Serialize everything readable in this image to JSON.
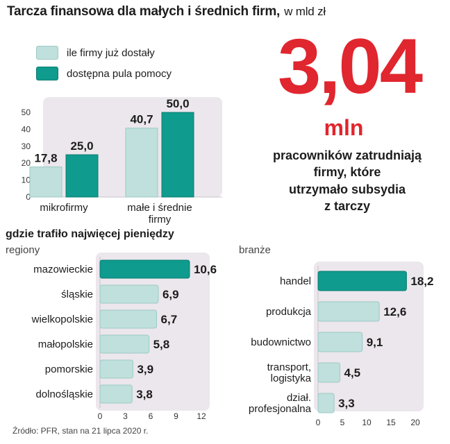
{
  "title": "Tarcza finansowa dla małych i średnich firm,",
  "title_unit": "w mld zł",
  "legend": [
    {
      "label": "ile firmy już dostały",
      "color": "#bfe0dd"
    },
    {
      "label": "dostępna pula pomocy",
      "color": "#0f9b8e"
    }
  ],
  "headline": {
    "number": "3,04",
    "unit": "mln",
    "caption": "pracowników zatrudniają\nfirmy, które\nutrzymało subsydia\nz tarczy"
  },
  "section_title": "gdzie trafiło najwięcej pieniędzy",
  "source": "Źródło: PFR, stan na 21 lipca 2020 r.",
  "colors": {
    "light": "#bfe0dd",
    "dark": "#0f9b8e",
    "accent": "#e0262e",
    "panel": "#ece7ec"
  },
  "chart_data": [
    {
      "type": "bar",
      "categories": [
        "mikrofirmy",
        "małe i średnie firmy"
      ],
      "category_labels": [
        "mikrofirmy",
        "małe i średnie\nfirmy"
      ],
      "series": [
        {
          "name": "ile firmy już dostały",
          "values": [
            17.8,
            40.7
          ],
          "labels": [
            "17,8",
            "40,7"
          ]
        },
        {
          "name": "dostępna pula pomocy",
          "values": [
            25.0,
            50.0
          ],
          "labels": [
            "25,0",
            "50,0"
          ]
        }
      ],
      "ylim": [
        0,
        50
      ],
      "yticks": [
        0,
        10,
        20,
        30,
        40,
        50
      ],
      "grid": false
    },
    {
      "type": "bar",
      "orientation": "horizontal",
      "title": "regiony",
      "categories": [
        "mazowieckie",
        "śląskie",
        "wielkopolskie",
        "małopolskie",
        "pomorskie",
        "dolnośląskie"
      ],
      "category_labels": [
        "mazowieckie",
        "śląskie",
        "wielkopolskie",
        "małopolskie",
        "pomorskie",
        "dolnośląskie"
      ],
      "values": [
        10.6,
        6.9,
        6.7,
        5.8,
        3.9,
        3.8
      ],
      "labels": [
        "10,6",
        "6,9",
        "6,7",
        "5,8",
        "3,9",
        "3,8"
      ],
      "xlim": [
        0,
        12
      ],
      "xticks": [
        0,
        3,
        6,
        9,
        12
      ],
      "highlight": [
        0
      ]
    },
    {
      "type": "bar",
      "orientation": "horizontal",
      "title": "branże",
      "categories": [
        "handel",
        "produkcja",
        "budownictwo",
        "transport, logistyka",
        "dział. profesjonalna"
      ],
      "category_labels": [
        "handel",
        "produkcja",
        "budownictwo",
        "transport,\nlogistyka",
        "dział.\nprofesjonalna"
      ],
      "values": [
        18.2,
        12.6,
        9.1,
        4.5,
        3.3
      ],
      "labels": [
        "18,2",
        "12,6",
        "9,1",
        "4,5",
        "3,3"
      ],
      "xlim": [
        0,
        20
      ],
      "xticks": [
        0,
        5,
        10,
        15,
        20
      ],
      "highlight": [
        0
      ]
    }
  ]
}
